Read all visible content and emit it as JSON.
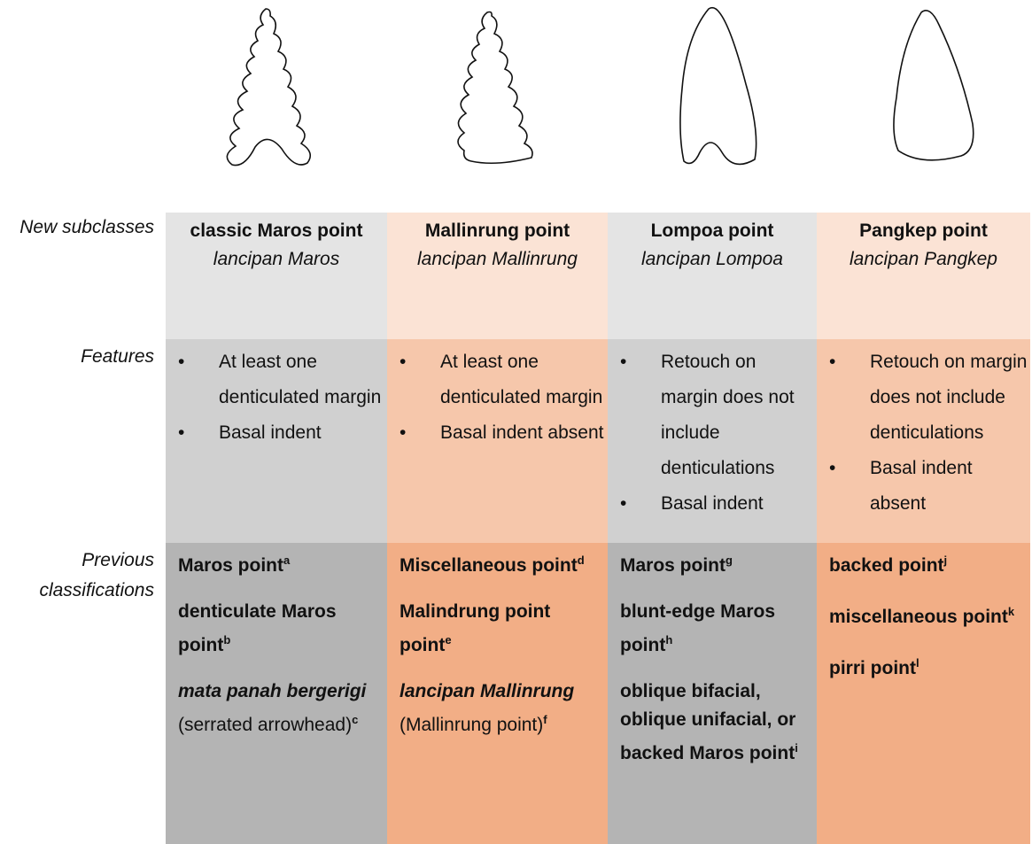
{
  "row_labels": [
    "New subclasses",
    "Features",
    "Previous classifications"
  ],
  "columns": [
    {
      "name": "classic Maros point",
      "local_name": "lancipan Maros",
      "features": [
        "At least one denticulated margin",
        "Basal indent"
      ],
      "previous": [
        {
          "text": "Maros point",
          "sup": "a"
        },
        {
          "text": "denticulate Maros point",
          "sup": "b"
        },
        {
          "text": "mata panah bergerigi",
          "italic": true,
          "note": "(serrated arrowhead)",
          "sup": "c"
        }
      ]
    },
    {
      "name": "Mallinrung point",
      "local_name": "lancipan Mallinrung",
      "features": [
        "At least one denticulated margin",
        "Basal indent absent"
      ],
      "previous": [
        {
          "text": "Miscellaneous point",
          "sup": "d"
        },
        {
          "text": "Malindrung point point",
          "sup": "e"
        },
        {
          "text": "lancipan Mallinrung",
          "italic": true,
          "note": "(Mallinrung point)",
          "sup": "f"
        }
      ]
    },
    {
      "name": "Lompoa point",
      "local_name": "lancipan Lompoa",
      "features": [
        "Retouch on margin does not include denticulations",
        "Basal indent"
      ],
      "previous": [
        {
          "text": "Maros point",
          "sup": "g"
        },
        {
          "text": "blunt-edge Maros point",
          "sup": "h"
        },
        {
          "text": "oblique bifacial, oblique unifacial, or backed Maros point",
          "sup": "i"
        }
      ]
    },
    {
      "name": "Pangkep point",
      "local_name": "lancipan Pangkep",
      "features": [
        "Retouch on margin does not include denticulations",
        "Basal indent absent"
      ],
      "previous": [
        {
          "text": "backed point",
          "sup": "j"
        },
        {
          "text": "miscellaneous point",
          "sup": "k"
        },
        {
          "text": "pirri point",
          "sup": "l"
        }
      ]
    }
  ]
}
